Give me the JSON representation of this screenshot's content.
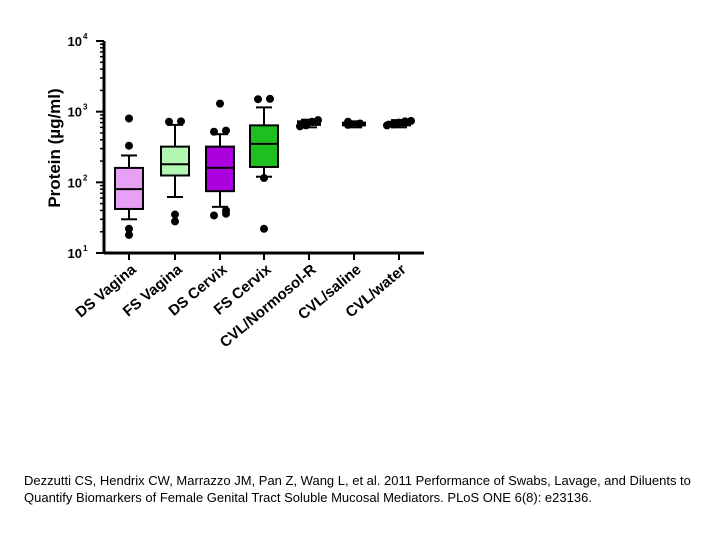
{
  "chart_data": {
    "type": "box",
    "title": "",
    "xlabel": "",
    "ylabel": "Protein (µg/ml)",
    "yscale": "log",
    "ylim": [
      10,
      10000
    ],
    "yticks": [
      {
        "value": 10,
        "label": "10",
        "exp": "1"
      },
      {
        "value": 100,
        "label": "10",
        "exp": "2"
      },
      {
        "value": 1000,
        "label": "10",
        "exp": "3"
      },
      {
        "value": 10000,
        "label": "10",
        "exp": "4"
      }
    ],
    "categories": [
      "DS Vagina",
      "FS Vagina",
      "DS Cervix",
      "FS Cervix",
      "CVL/Normosol-R",
      "CVL/saline",
      "CVL/water"
    ],
    "colors": [
      "#e8a0f4",
      "#b2f7b2",
      "#aa00dd",
      "#1fbf1f",
      "#ffffff",
      "#ffffff",
      "#ffffff"
    ],
    "boxes": [
      {
        "whisker_low": 30,
        "q1": 42,
        "median": 80,
        "q3": 160,
        "whisker_high": 240,
        "outliers": [
          18,
          22,
          330,
          800
        ]
      },
      {
        "whisker_low": 62,
        "q1": 125,
        "median": 180,
        "q3": 320,
        "whisker_high": 650,
        "outliers": [
          28,
          35,
          720,
          730
        ]
      },
      {
        "whisker_low": 45,
        "q1": 75,
        "median": 160,
        "q3": 320,
        "whisker_high": 480,
        "outliers": [
          34,
          36,
          40,
          520,
          540,
          1300
        ]
      },
      {
        "whisker_low": 120,
        "q1": 165,
        "median": 350,
        "q3": 640,
        "whisker_high": 1150,
        "outliers": [
          22,
          115,
          1500,
          1520
        ]
      },
      {
        "whisker_low": 600,
        "q1": 650,
        "median": 690,
        "q3": 730,
        "whisker_high": 770,
        "outliers": [
          620,
          640,
          720,
          760
        ]
      },
      {
        "whisker_low": 600,
        "q1": 640,
        "median": 670,
        "q3": 700,
        "whisker_high": 730,
        "outliers": [
          650,
          680,
          720
        ]
      },
      {
        "whisker_low": 600,
        "q1": 640,
        "median": 680,
        "q3": 720,
        "whisker_high": 760,
        "outliers": [
          640,
          660,
          700,
          730,
          740
        ]
      }
    ],
    "grid": false
  },
  "caption": "Dezzutti CS, Hendrix CW, Marrazzo JM, Pan Z, Wang L, et al. 2011 Performance of Swabs, Lavage, and Diluents to Quantify Biomarkers of Female Genital Tract Soluble Mucosal Mediators. PLoS ONE 6(8): e23136."
}
